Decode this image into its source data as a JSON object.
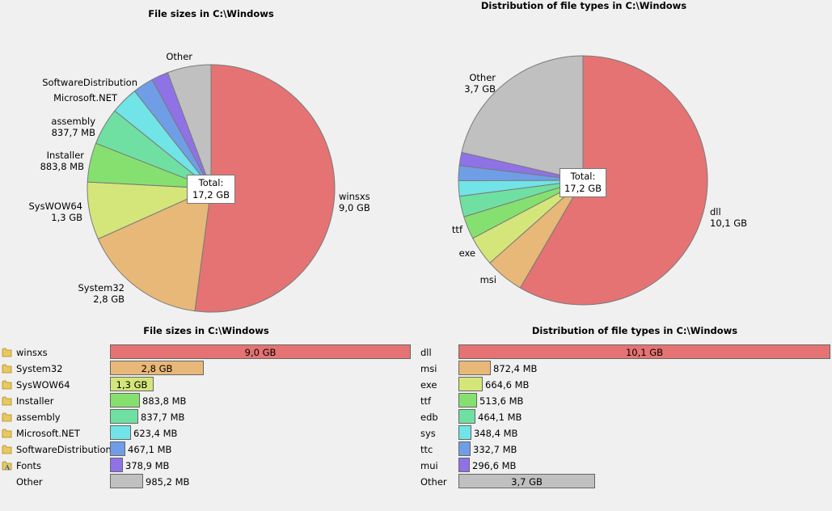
{
  "charts": {
    "left": {
      "pie_title": "File sizes in C:\\Windows",
      "bar_title": "File sizes in C:\\Windows",
      "total_label": "Total:",
      "total_value": "17,2 GB",
      "items": [
        {
          "name": "winsxs",
          "value_gb": 9.0,
          "value_text": "9,0 GB",
          "color": "#e57373",
          "pie_label": "winsxs\n9,0 GB",
          "icon": "folder-icon"
        },
        {
          "name": "System32",
          "value_gb": 2.8,
          "value_text": "2,8 GB",
          "color": "#e8b878",
          "pie_label": "System32\n2,8 GB",
          "icon": "folder-icon"
        },
        {
          "name": "SysWOW64",
          "value_gb": 1.3,
          "value_text": "1,3 GB",
          "color": "#d4e67a",
          "pie_label": "SysWOW64\n1,3 GB",
          "icon": "folder-icon"
        },
        {
          "name": "Installer",
          "value_gb": 0.8838,
          "value_text": "883,8 MB",
          "color": "#86e070",
          "pie_label": "Installer\n883,8 MB",
          "icon": "folder-icon"
        },
        {
          "name": "assembly",
          "value_gb": 0.8377,
          "value_text": "837,7 MB",
          "color": "#6fe0a2",
          "pie_label": "assembly\n837,7 MB",
          "icon": "folder-icon"
        },
        {
          "name": "Microsoft.NET",
          "value_gb": 0.6234,
          "value_text": "623,4 MB",
          "color": "#70e4e6",
          "pie_label": "Microsoft.NET",
          "icon": "folder-icon"
        },
        {
          "name": "SoftwareDistribution",
          "value_gb": 0.4671,
          "value_text": "467,1 MB",
          "color": "#709ee6",
          "pie_label": "SoftwareDistribution",
          "icon": "folder-icon"
        },
        {
          "name": "Fonts",
          "value_gb": 0.3789,
          "value_text": "378,9 MB",
          "color": "#8e72e6",
          "pie_label": "",
          "icon": "fonts-folder-icon"
        },
        {
          "name": "Other",
          "value_gb": 0.9852,
          "value_text": "985,2 MB",
          "color": "#c0c0c0",
          "pie_label": "Other",
          "icon": ""
        }
      ]
    },
    "right": {
      "pie_title": "Distribution of file types in C:\\Windows",
      "bar_title": "Distribution of file types in C:\\Windows",
      "total_label": "Total:",
      "total_value": "17,2 GB",
      "items": [
        {
          "name": "dll",
          "value_gb": 10.1,
          "value_text": "10,1 GB",
          "color": "#e57373",
          "pie_label": "dll\n10,1 GB"
        },
        {
          "name": "msi",
          "value_gb": 0.8724,
          "value_text": "872,4 MB",
          "color": "#e8b878",
          "pie_label": "msi"
        },
        {
          "name": "exe",
          "value_gb": 0.6646,
          "value_text": "664,6 MB",
          "color": "#d4e67a",
          "pie_label": "exe"
        },
        {
          "name": "ttf",
          "value_gb": 0.5136,
          "value_text": "513,6 MB",
          "color": "#86e070",
          "pie_label": "ttf"
        },
        {
          "name": "edb",
          "value_gb": 0.4641,
          "value_text": "464,1 MB",
          "color": "#6fe0a2",
          "pie_label": ""
        },
        {
          "name": "sys",
          "value_gb": 0.3484,
          "value_text": "348,4 MB",
          "color": "#70e4e6",
          "pie_label": ""
        },
        {
          "name": "ttc",
          "value_gb": 0.3327,
          "value_text": "332,7 MB",
          "color": "#709ee6",
          "pie_label": ""
        },
        {
          "name": "mui",
          "value_gb": 0.2966,
          "value_text": "296,6 MB",
          "color": "#8e72e6",
          "pie_label": ""
        },
        {
          "name": "Other",
          "value_gb": 3.7,
          "value_text": "3,7 GB",
          "color": "#c0c0c0",
          "pie_label": "Other\n3,7 GB"
        }
      ]
    }
  },
  "chart_data": [
    {
      "type": "pie",
      "title": "File sizes in C:\\Windows",
      "categories": [
        "winsxs",
        "System32",
        "SysWOW64",
        "Installer",
        "assembly",
        "Microsoft.NET",
        "SoftwareDistribution",
        "Fonts",
        "Other"
      ],
      "values": [
        9.0,
        2.8,
        1.3,
        0.8838,
        0.8377,
        0.6234,
        0.4671,
        0.3789,
        0.9852
      ],
      "unit": "GB"
    },
    {
      "type": "pie",
      "title": "Distribution of file types in C:\\Windows",
      "categories": [
        "dll",
        "msi",
        "exe",
        "ttf",
        "edb",
        "sys",
        "ttc",
        "mui",
        "Other"
      ],
      "values": [
        10.1,
        0.8724,
        0.6646,
        0.5136,
        0.4641,
        0.3484,
        0.3327,
        0.2966,
        3.7
      ],
      "unit": "GB"
    },
    {
      "type": "bar",
      "title": "File sizes in C:\\Windows",
      "categories": [
        "winsxs",
        "System32",
        "SysWOW64",
        "Installer",
        "assembly",
        "Microsoft.NET",
        "SoftwareDistribution",
        "Fonts",
        "Other"
      ],
      "values": [
        9.0,
        2.8,
        1.3,
        0.8838,
        0.8377,
        0.6234,
        0.4671,
        0.3789,
        0.9852
      ],
      "unit": "GB"
    },
    {
      "type": "bar",
      "title": "Distribution of file types in C:\\Windows",
      "categories": [
        "dll",
        "msi",
        "exe",
        "ttf",
        "edb",
        "sys",
        "ttc",
        "mui",
        "Other"
      ],
      "values": [
        10.1,
        0.8724,
        0.6646,
        0.5136,
        0.4641,
        0.3484,
        0.3327,
        0.2966,
        3.7
      ],
      "unit": "GB"
    }
  ]
}
